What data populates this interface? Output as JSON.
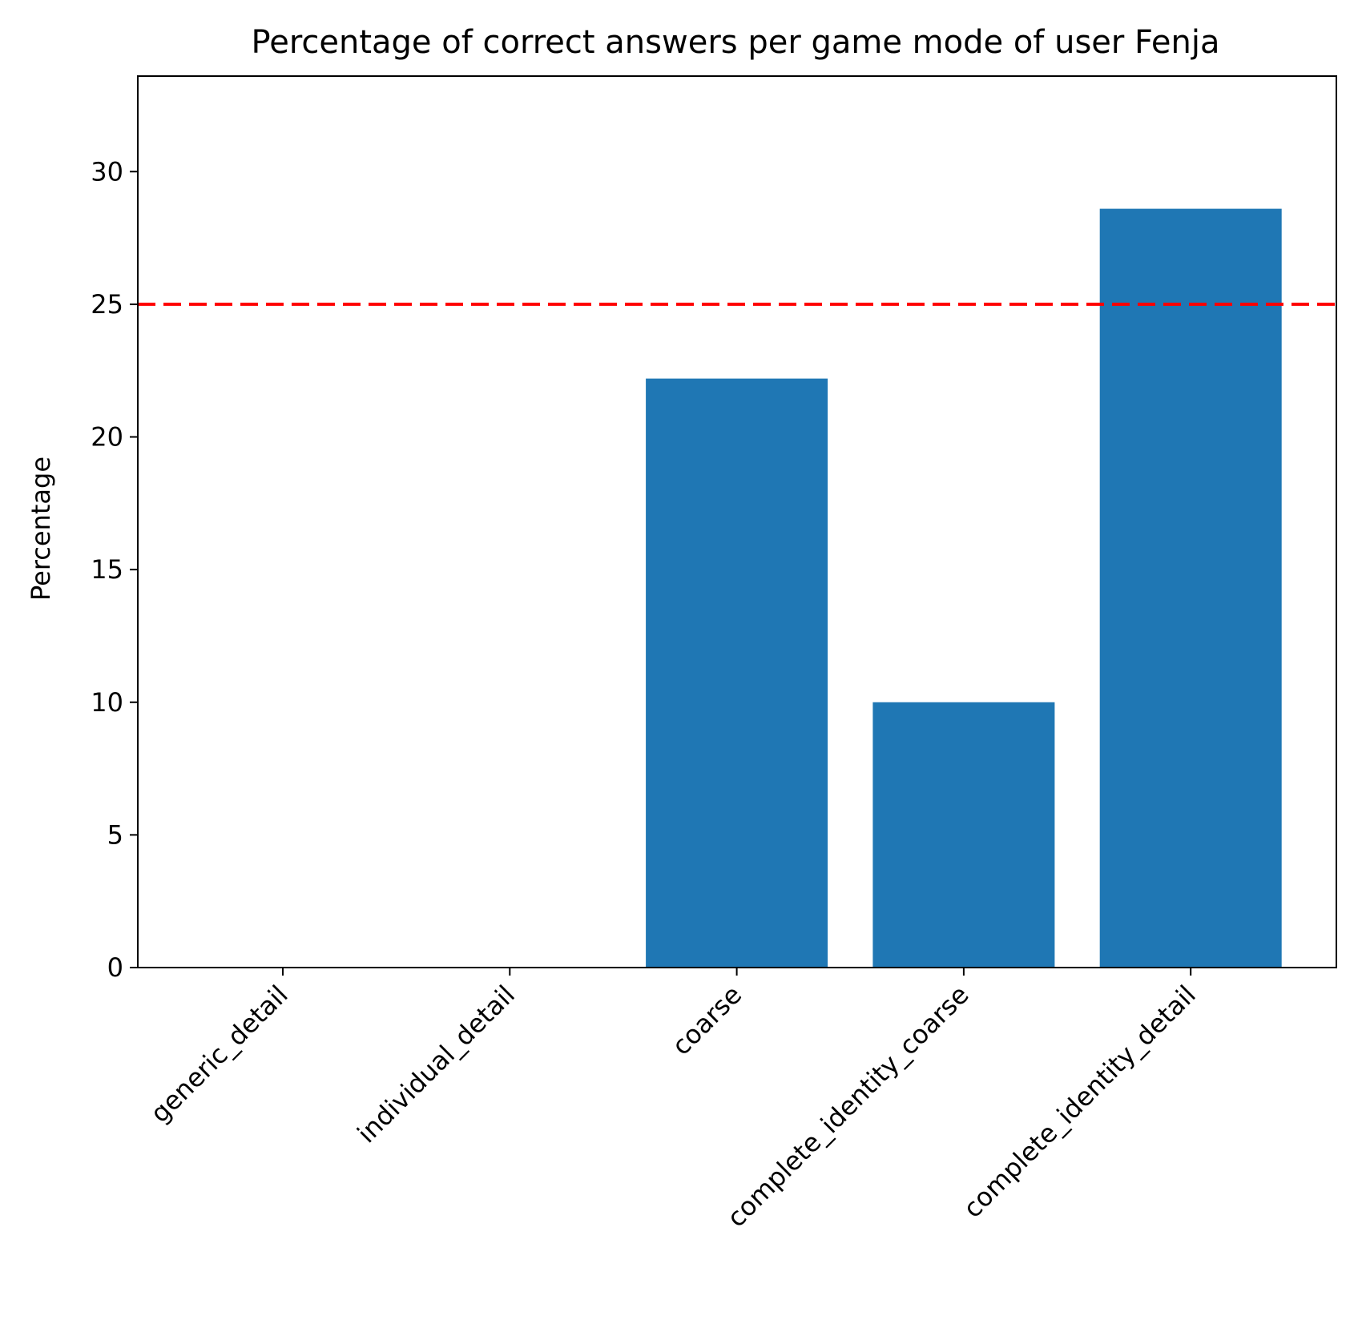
{
  "chart_data": {
    "type": "bar",
    "title": "Percentage of correct answers per game mode of user Fenja",
    "xlabel": "",
    "ylabel": "Percentage",
    "categories": [
      "generic_detail",
      "individual_detail",
      "coarse",
      "complete_identity_coarse",
      "complete_identity_detail"
    ],
    "values": [
      0,
      0,
      22.2,
      10.0,
      28.6
    ],
    "ylim": [
      0,
      33.6
    ],
    "yticks": [
      "0",
      "5",
      "10",
      "15",
      "20",
      "25",
      "30"
    ],
    "reference_line": {
      "value": 25,
      "style": "dashed",
      "color": "#ff0000"
    },
    "bar_color": "#1f77b4",
    "grid": false
  }
}
